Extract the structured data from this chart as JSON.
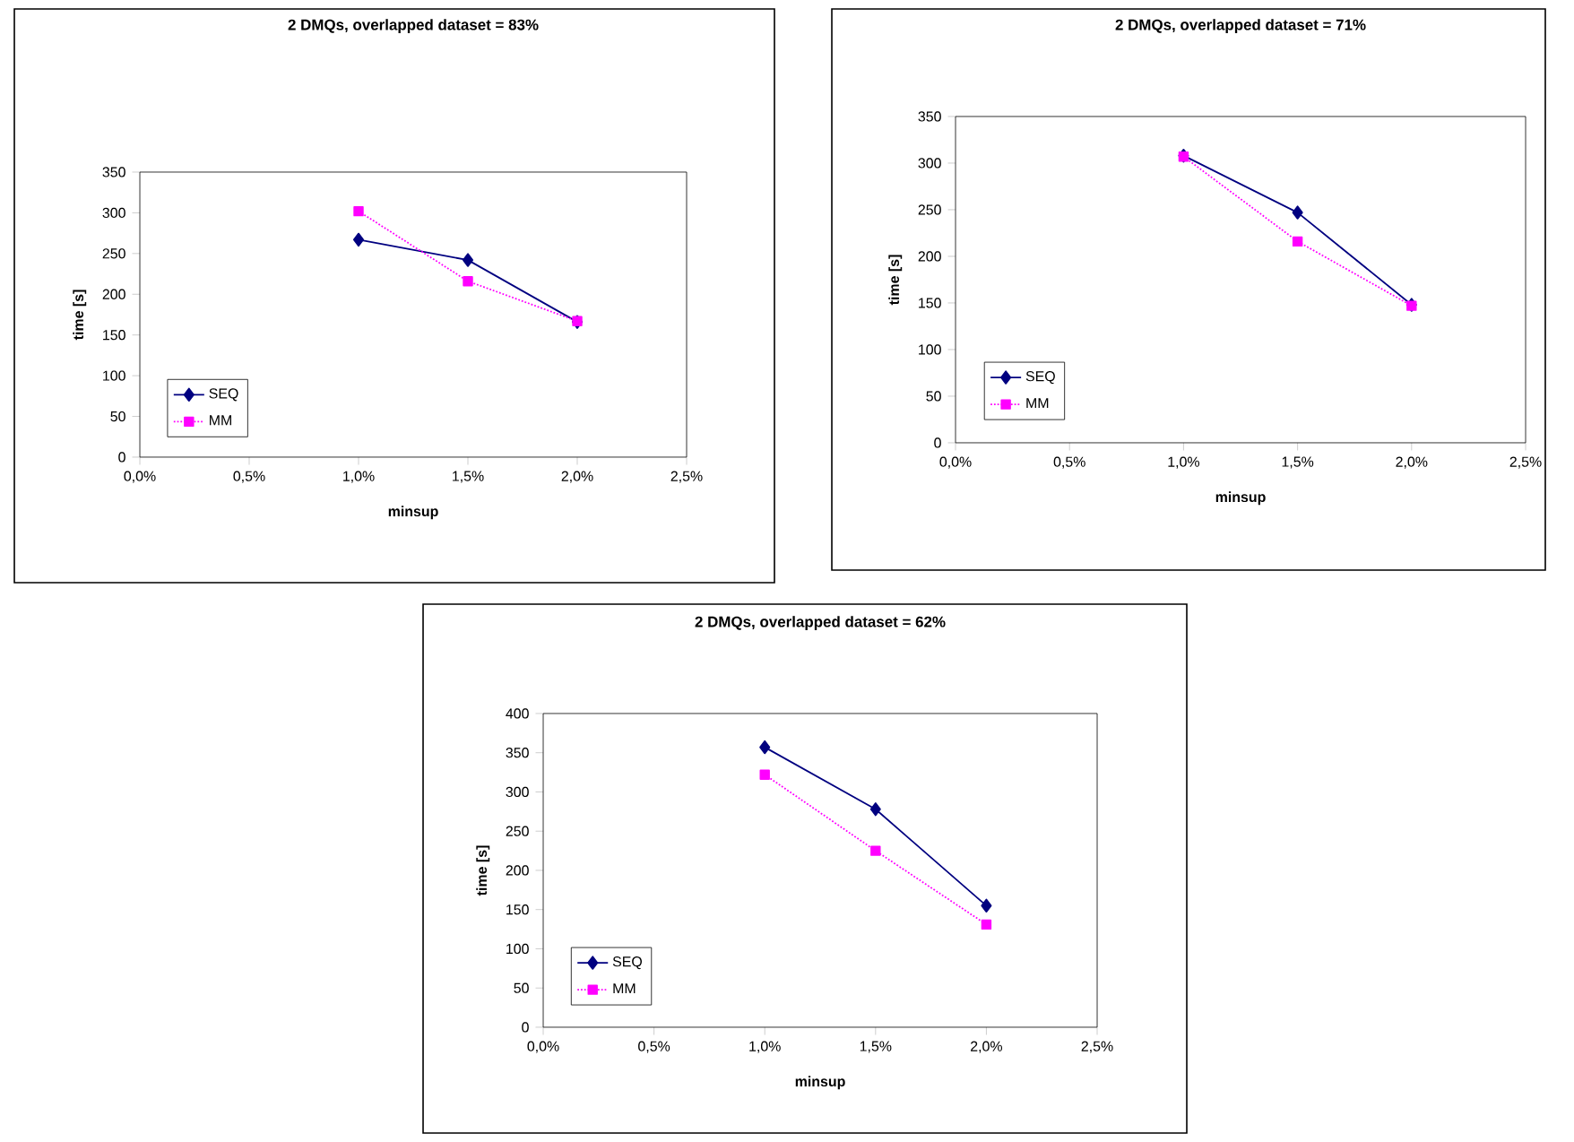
{
  "chart_data": [
    {
      "type": "line",
      "title": "2 DMQs, overlapped dataset = 83%",
      "xlabel": "minsup",
      "ylabel": "time [s]",
      "xlim": [
        0,
        2.5
      ],
      "xticks": [
        {
          "value": 0,
          "label": "0,0%"
        },
        {
          "value": 0.5,
          "label": "0,5%"
        },
        {
          "value": 1.0,
          "label": "1,0%"
        },
        {
          "value": 1.5,
          "label": "1,5%"
        },
        {
          "value": 2.0,
          "label": "2,0%"
        },
        {
          "value": 2.5,
          "label": "2,5%"
        }
      ],
      "ylim": [
        0,
        350
      ],
      "yticks": [
        0,
        50,
        100,
        150,
        200,
        250,
        300,
        350
      ],
      "legend": "bottom left",
      "x": [
        1.0,
        1.5,
        2.0
      ],
      "series": [
        {
          "name": "SEQ",
          "color": "#000080",
          "marker": "diamond",
          "line_style": "solid",
          "values": [
            267,
            242,
            166
          ]
        },
        {
          "name": "MM",
          "color": "#ff00ff",
          "marker": "square",
          "line_style": "dotted",
          "values": [
            302,
            216,
            167
          ]
        }
      ]
    },
    {
      "type": "line",
      "title": "2 DMQs, overlapped dataset = 71%",
      "xlabel": "minsup",
      "ylabel": "time [s]",
      "xlim": [
        0,
        2.5
      ],
      "xticks": [
        {
          "value": 0,
          "label": "0,0%"
        },
        {
          "value": 0.5,
          "label": "0,5%"
        },
        {
          "value": 1.0,
          "label": "1,0%"
        },
        {
          "value": 1.5,
          "label": "1,5%"
        },
        {
          "value": 2.0,
          "label": "2,0%"
        },
        {
          "value": 2.5,
          "label": "2,5%"
        }
      ],
      "ylim": [
        0,
        350
      ],
      "yticks": [
        0,
        50,
        100,
        150,
        200,
        250,
        300,
        350
      ],
      "legend": "bottom left",
      "x": [
        1.0,
        1.5,
        2.0
      ],
      "series": [
        {
          "name": "SEQ",
          "color": "#000080",
          "marker": "diamond",
          "line_style": "solid",
          "values": [
            308,
            247,
            148
          ]
        },
        {
          "name": "MM",
          "color": "#ff00ff",
          "marker": "square",
          "line_style": "dotted",
          "values": [
            307,
            216,
            147
          ]
        }
      ]
    },
    {
      "type": "line",
      "title": "2 DMQs, overlapped dataset = 62%",
      "xlabel": "minsup",
      "ylabel": "time [s]",
      "xlim": [
        0,
        2.5
      ],
      "xticks": [
        {
          "value": 0,
          "label": "0,0%"
        },
        {
          "value": 0.5,
          "label": "0,5%"
        },
        {
          "value": 1.0,
          "label": "1,0%"
        },
        {
          "value": 1.5,
          "label": "1,5%"
        },
        {
          "value": 2.0,
          "label": "2,0%"
        },
        {
          "value": 2.5,
          "label": "2,5%"
        }
      ],
      "ylim": [
        0,
        400
      ],
      "yticks": [
        0,
        50,
        100,
        150,
        200,
        250,
        300,
        350,
        400
      ],
      "legend": "bottom left",
      "x": [
        1.0,
        1.5,
        2.0
      ],
      "series": [
        {
          "name": "SEQ",
          "color": "#000080",
          "marker": "diamond",
          "line_style": "solid",
          "values": [
            357,
            278,
            155
          ]
        },
        {
          "name": "MM",
          "color": "#ff00ff",
          "marker": "square",
          "line_style": "dotted",
          "values": [
            322,
            225,
            131
          ]
        }
      ]
    }
  ]
}
